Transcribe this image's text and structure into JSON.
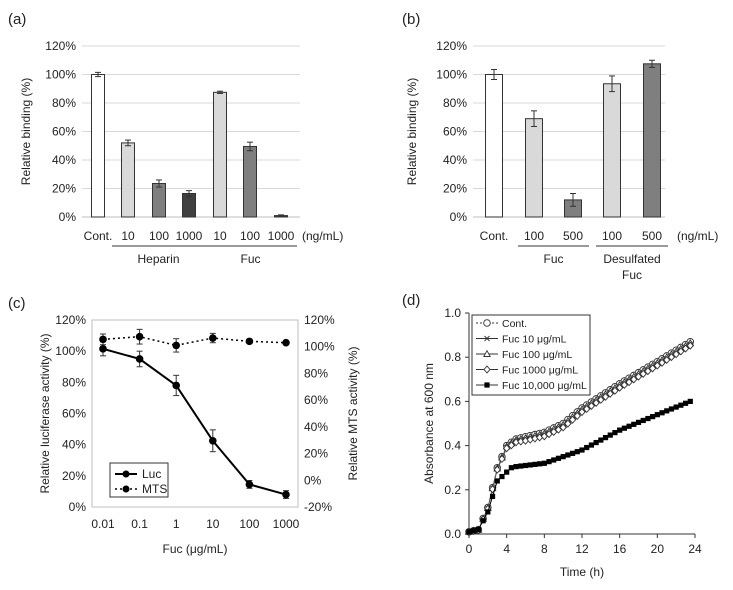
{
  "figure": {
    "panel_labels": [
      "(a)",
      "(b)",
      "(c)",
      "(d)"
    ]
  },
  "chart_data": [
    {
      "panel": "(a)",
      "type": "bar",
      "ylabel": "Relative binding (%)",
      "ylim": [
        0,
        120
      ],
      "yticks": [
        "0%",
        "20%",
        "40%",
        "60%",
        "80%",
        "100%",
        "120%"
      ],
      "grid": true,
      "unit_label": "(ng/mL)",
      "categories": [
        "Cont.",
        "10",
        "100",
        "1000",
        "10",
        "100",
        "1000"
      ],
      "values": [
        100,
        52,
        23.5,
        16.5,
        87.5,
        49.5,
        1
      ],
      "errors": [
        1.5,
        2,
        2.5,
        2,
        0.8,
        3,
        0.5
      ],
      "colors": [
        "#ffffff",
        "#d9d9d9",
        "#7f7f7f",
        "#404040",
        "#d9d9d9",
        "#7f7f7f",
        "#404040"
      ],
      "groups": [
        {
          "label": "Heparin",
          "from": 1,
          "to": 3
        },
        {
          "label": "Fuc",
          "from": 4,
          "to": 6
        }
      ]
    },
    {
      "panel": "(b)",
      "type": "bar",
      "ylabel": "Relative binding (%)",
      "ylim": [
        0,
        120
      ],
      "yticks": [
        "0%",
        "20%",
        "40%",
        "60%",
        "80%",
        "100%",
        "120%"
      ],
      "grid": true,
      "unit_label": "(ng/mL)",
      "categories": [
        "Cont.",
        "100",
        "500",
        "100",
        "500"
      ],
      "values": [
        100,
        69,
        12,
        93.5,
        107.5
      ],
      "errors": [
        3.5,
        5.5,
        4.5,
        5.5,
        2.5
      ],
      "colors": [
        "#ffffff",
        "#d9d9d9",
        "#7f7f7f",
        "#d9d9d9",
        "#7f7f7f"
      ],
      "groups": [
        {
          "label": "Fuc",
          "from": 1,
          "to": 2
        },
        {
          "label": "Desulfated",
          "label2": "Fuc",
          "from": 3,
          "to": 4
        }
      ]
    },
    {
      "panel": "(c)",
      "type": "line",
      "xlabel": "Fuc (μg/mL)",
      "ylabel": "Relative luciferase activity  (%)",
      "y2label": "Relative MTS activity (%)",
      "xscale": "log",
      "x": [
        0.01,
        0.1,
        1,
        10,
        100,
        1000
      ],
      "xticks": [
        "0.01",
        "0.1",
        "1",
        "10",
        "100",
        "1000"
      ],
      "ylim": [
        0,
        120
      ],
      "yticks": [
        "0%",
        "20%",
        "40%",
        "60%",
        "80%",
        "100%",
        "120%"
      ],
      "y2lim": [
        -20,
        120
      ],
      "y2ticks": [
        "-20%",
        "0%",
        "20%",
        "40%",
        "60%",
        "80%",
        "100%",
        "120%"
      ],
      "grid": false,
      "legend_position": "bottom-left",
      "series": [
        {
          "name": "Luc",
          "axis": "left",
          "style": "solid",
          "values": [
            101.5,
            95,
            78,
            42.5,
            14.5,
            8
          ],
          "errors": [
            4.5,
            5,
            6.5,
            7,
            2.5,
            2.5
          ]
        },
        {
          "name": "MTS",
          "axis": "right",
          "style": "dotted",
          "values": [
            105.5,
            107.5,
            101,
            106.5,
            104,
            103
          ],
          "errors": [
            4,
            5.5,
            5,
            3.5,
            1,
            0
          ]
        }
      ]
    },
    {
      "panel": "(d)",
      "type": "scatter",
      "xlabel": "Time (h)",
      "ylabel": "Absorbance at 600 nm",
      "xlim": [
        0,
        24
      ],
      "xticks": [
        "0",
        "4",
        "8",
        "12",
        "16",
        "20",
        "24"
      ],
      "ylim": [
        0,
        1
      ],
      "yticks": [
        "0.0",
        "0.2",
        "0.4",
        "0.6",
        "0.8",
        "1.0"
      ],
      "grid": false,
      "legend_position": "top-left",
      "legend_labels": [
        "Cont.",
        "Fuc 10 μg/mL",
        "Fuc 100 μg/mL",
        "Fuc 1000 μg/mL",
        "Fuc 10,000 μg/mL"
      ],
      "curve_keys": {
        "top": {
          "t": [
            0,
            1,
            2,
            3,
            4,
            5,
            8,
            10,
            12,
            16,
            20,
            23.5
          ],
          "a": [
            0.01,
            0.02,
            0.12,
            0.3,
            0.4,
            0.43,
            0.46,
            0.5,
            0.57,
            0.68,
            0.78,
            0.87
          ]
        },
        "bottom": {
          "t": [
            0,
            1,
            2,
            3,
            4,
            4.5,
            5,
            8,
            12,
            16,
            20,
            23.5
          ],
          "a": [
            0.01,
            0.02,
            0.1,
            0.24,
            0.28,
            0.3,
            0.305,
            0.32,
            0.38,
            0.47,
            0.54,
            0.6
          ]
        }
      }
    }
  ]
}
